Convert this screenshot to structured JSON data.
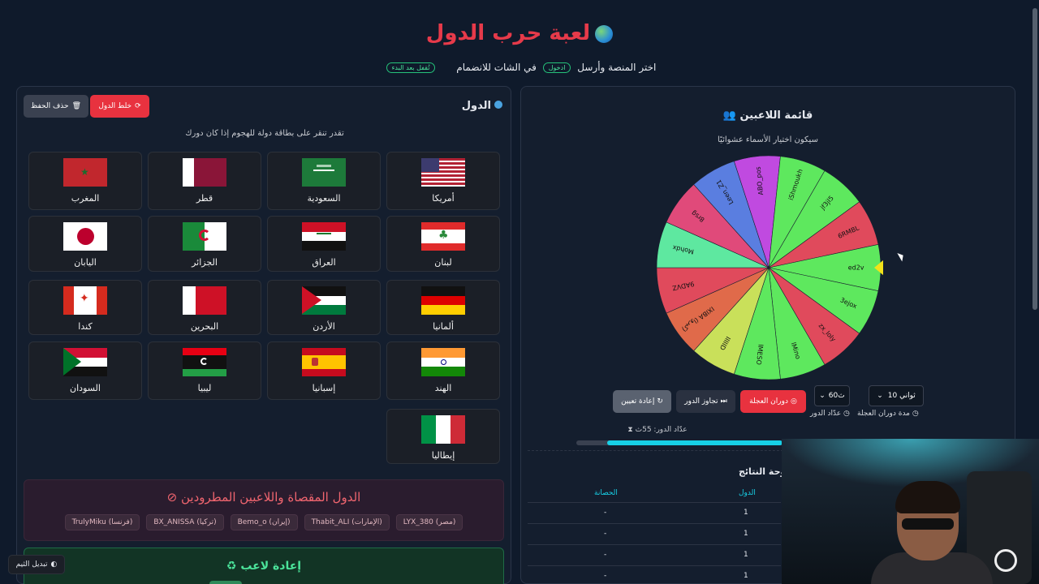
{
  "page": {
    "title": "لعبة حرب الدول",
    "subtitle_prefix": "اختر المنصة وأرسل",
    "subtitle_join_pill": "ادخول",
    "subtitle_middle": "في الشات للانضمام",
    "subtitle_locked_pill": "تُقفل بعد البدء"
  },
  "countries_panel": {
    "heading": "الدول",
    "shuffle_button": "خلط الدول",
    "delete_save_button": "حذف الحفظ",
    "hint": "تقدر تنقر على بطاقة دولة للهجوم إذا كان دورك",
    "countries": [
      {
        "name": "أمريكا",
        "flag": "usa"
      },
      {
        "name": "السعودية",
        "flag": "saudi"
      },
      {
        "name": "قطر",
        "flag": "qatar"
      },
      {
        "name": "المغرب",
        "flag": "morocco"
      },
      {
        "name": "لبنان",
        "flag": "lebanon"
      },
      {
        "name": "العراق",
        "flag": "iraq"
      },
      {
        "name": "الجزائر",
        "flag": "algeria"
      },
      {
        "name": "اليابان",
        "flag": "japan"
      },
      {
        "name": "ألمانيا",
        "flag": "germany"
      },
      {
        "name": "الأردن",
        "flag": "jordan"
      },
      {
        "name": "البحرين",
        "flag": "bahrain"
      },
      {
        "name": "كندا",
        "flag": "canada"
      },
      {
        "name": "الهند",
        "flag": "india"
      },
      {
        "name": "إسبانيا",
        "flag": "spain"
      },
      {
        "name": "ليبيا",
        "flag": "libya"
      },
      {
        "name": "السودان",
        "flag": "sudan"
      },
      {
        "name": "إيطاليا",
        "flag": "italy"
      }
    ],
    "banned_title": "الدول المقصاة واللاعبين المطرودين",
    "banned_tags": [
      "LYX_380 (مصر)",
      "Thabit_ALI (الإمارات)",
      "Bemo_o (إيران)",
      "BX_ANISSA (تركيا)",
      "TrulyMiku (فرنسا)"
    ],
    "rejoin_title": "إعادة لاعب"
  },
  "players_panel": {
    "title": "قائمة اللاعبين",
    "subtitle": "سيكون اختيار الأسماء عشوائيًا",
    "wheel_names": [
      "ed2v",
      "3ejox",
      "zx_loly",
      "lMino",
      "lMESO",
      "IIIIID",
      "IXIBA (كيروا)",
      "9ADVZ",
      "Mohdx",
      "8rsg",
      "Leen_Z1",
      "ABO_pos",
      "iShmoukh",
      "jf3jl5",
      "6RMBL"
    ],
    "wheel_colors": [
      "#5ee85e",
      "#5ee85e",
      "#e04a5c",
      "#5ee85e",
      "#5ee85e",
      "#c9e05a",
      "#e06a4a",
      "#e04a5c",
      "#5ee8a0",
      "#e04a7a",
      "#5a7ee0",
      "#c04ae0",
      "#5ee85e",
      "#5ee85e",
      "#e04a5c"
    ],
    "spin_button": "دوران العجلة",
    "skip_button": "تجاوز الدور",
    "reset_button": "إعادة تعيين",
    "spin_duration_label": "مدة دوران العجلة",
    "spin_duration_value": "10 ثواني",
    "turn_timer_label": "عدّاد الدور",
    "turn_timer_value": "60ث",
    "turn_counter": "عدّاد الدور: 55ث",
    "progress_fraction": 0.85,
    "results_title": "لوحة النتائج",
    "results_headers": {
      "country": "الدول",
      "immunity": "الحصانة"
    },
    "results_rows": [
      {
        "country": "1",
        "immunity": "-"
      },
      {
        "country": "1",
        "immunity": "-"
      },
      {
        "country": "1",
        "immunity": "-"
      },
      {
        "country": "1",
        "immunity": "-"
      }
    ]
  },
  "theme_button": "تبديل الثيم",
  "colors": {
    "accent_red": "#e8323f",
    "accent_cyan": "#17d0e6",
    "accent_green": "#4be39a"
  }
}
